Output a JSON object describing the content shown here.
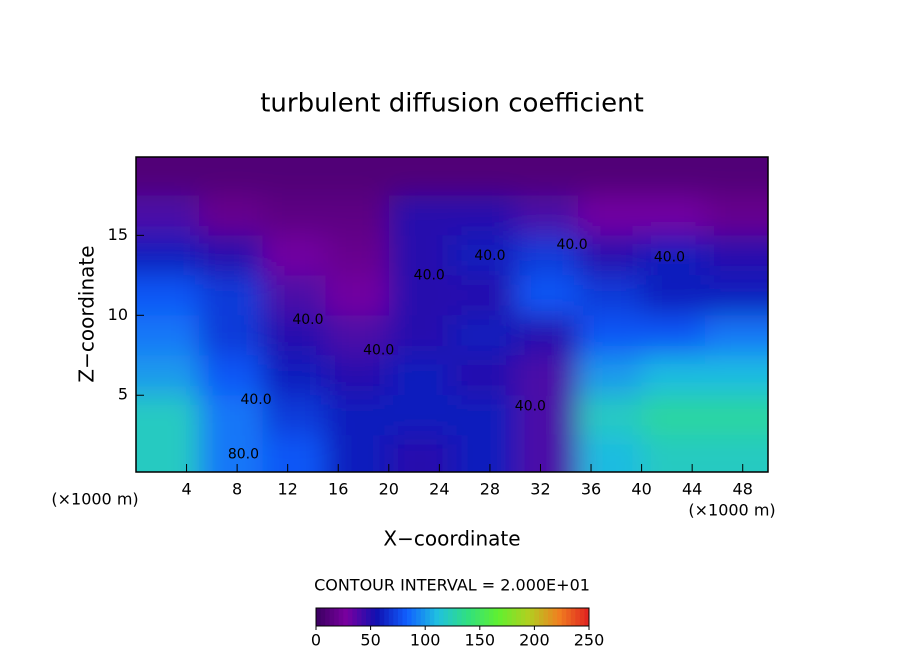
{
  "chart_data": {
    "type": "contour",
    "title": "turbulent diffusion coefficient",
    "x_label": "X−coordinate",
    "y_label": "Z−coordinate",
    "x_unit": "(×1000 m)",
    "y_unit": "(×1000 m)",
    "contour_interval": "CONTOUR INTERVAL = 2.000E+01",
    "xlim": [
      0,
      50
    ],
    "ylim": [
      0.2,
      19.9
    ],
    "xticks": [
      4,
      8,
      12,
      16,
      20,
      24,
      28,
      32,
      36,
      40,
      44,
      48
    ],
    "yticks": [
      5,
      10,
      15
    ],
    "x": [
      2.5,
      7.5,
      12.5,
      17.5,
      22.5,
      27.5,
      32.5,
      37.5,
      42.5,
      47.5
    ],
    "y": [
      18.75,
      16.25,
      13.75,
      11.25,
      8.75,
      6.25,
      3.75,
      1.25
    ],
    "z": [
      [
        10,
        10,
        10,
        10,
        10,
        10,
        10,
        10,
        10,
        10
      ],
      [
        40,
        20,
        15,
        15,
        50,
        50,
        40,
        30,
        30,
        20
      ],
      [
        60,
        50,
        30,
        20,
        50,
        60,
        70,
        50,
        60,
        50
      ],
      [
        80,
        70,
        40,
        30,
        50,
        50,
        80,
        70,
        60,
        60
      ],
      [
        90,
        70,
        50,
        40,
        50,
        60,
        50,
        80,
        80,
        90
      ],
      [
        100,
        80,
        60,
        50,
        60,
        50,
        40,
        100,
        110,
        110
      ],
      [
        120,
        90,
        70,
        60,
        60,
        60,
        40,
        120,
        130,
        130
      ],
      [
        120,
        90,
        80,
        60,
        50,
        60,
        40,
        110,
        120,
        120
      ]
    ],
    "colorbar_lim": [
      0,
      250
    ],
    "colorbar_ticks": [
      0,
      50,
      100,
      150,
      200,
      250
    ],
    "colorscale": [
      "#3a0060",
      "#7a00a0",
      "#1010b0",
      "#1060ff",
      "#20c0e0",
      "#30e080",
      "#60f030",
      "#b0d020",
      "#f08020",
      "#e02020"
    ],
    "contour_labels": [
      {
        "text": "40.0",
        "x": 9.5,
        "y": 4.7
      },
      {
        "text": "40.0",
        "x": 13.6,
        "y": 9.7
      },
      {
        "text": "40.0",
        "x": 19.2,
        "y": 7.8
      },
      {
        "text": "40.0",
        "x": 23.2,
        "y": 12.5
      },
      {
        "text": "40.0",
        "x": 28,
        "y": 13.7
      },
      {
        "text": "40.0",
        "x": 34.5,
        "y": 14.4
      },
      {
        "text": "40.0",
        "x": 42.2,
        "y": 13.6
      },
      {
        "text": "40.0",
        "x": 31.2,
        "y": 4.3
      },
      {
        "text": "80.0",
        "x": 8.5,
        "y": 1.3
      }
    ]
  }
}
